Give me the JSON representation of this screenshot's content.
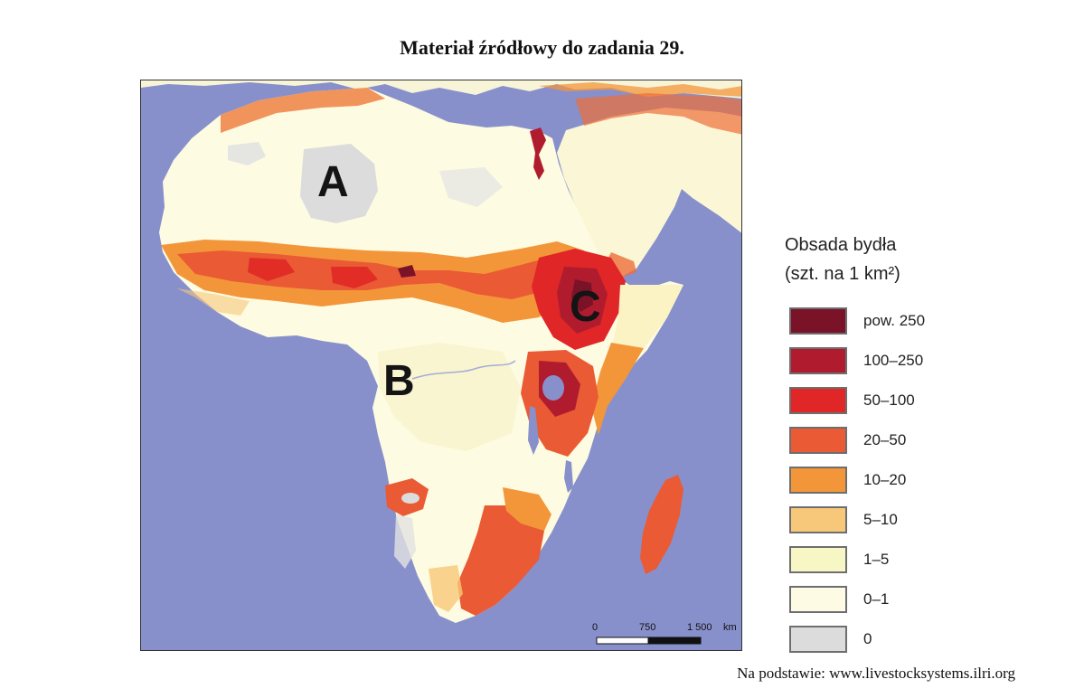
{
  "title": "Materiał źródłowy do zadania 29.",
  "map": {
    "region_labels": [
      "A",
      "B",
      "C"
    ],
    "scale_bar": {
      "ticks": [
        "0",
        "750",
        "1 500"
      ],
      "unit": "km"
    }
  },
  "legend": {
    "title_line1": "Obsada bydła",
    "title_line2": "(szt. na 1 km²)",
    "items": [
      {
        "label": "pow. 250",
        "color": "#7a1228"
      },
      {
        "label": "100–250",
        "color": "#b01c2e"
      },
      {
        "label": "50–100",
        "color": "#e02626"
      },
      {
        "label": "20–50",
        "color": "#ea5a34"
      },
      {
        "label": "10–20",
        "color": "#f3963a"
      },
      {
        "label": "5–10",
        "color": "#f7c879"
      },
      {
        "label": "1–5",
        "color": "#f6f7c5"
      },
      {
        "label": "0–1",
        "color": "#fdfbe4"
      },
      {
        "label": "0",
        "color": "#dcdcdc"
      }
    ]
  },
  "source": "Na podstawie: www.livestocksystems.ilri.org"
}
